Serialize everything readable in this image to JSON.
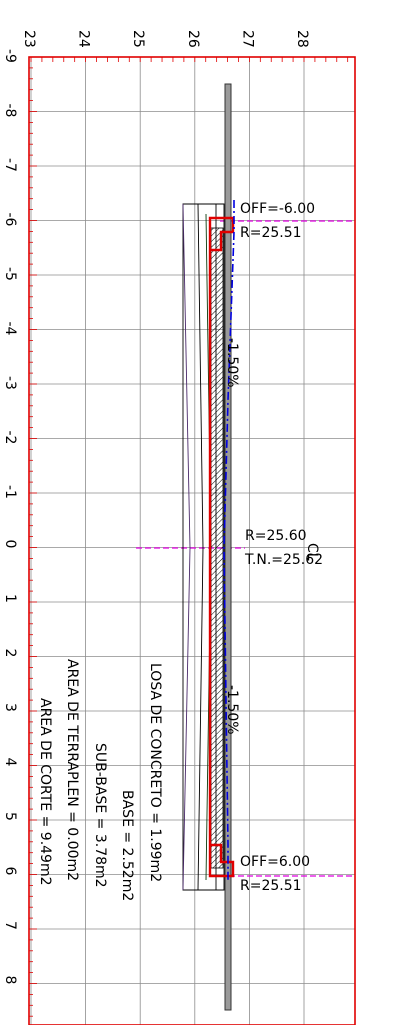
{
  "elevation_axis": {
    "ticks": [
      "23",
      "24",
      "25",
      "26",
      "27",
      "28"
    ]
  },
  "offset_axis": {
    "ticks": [
      "-9",
      "-8",
      "-7",
      "-6",
      "-5",
      "-4",
      "-3",
      "-2",
      "-1",
      "0",
      "1",
      "2",
      "3",
      "4",
      "5",
      "6",
      "7",
      "8"
    ]
  },
  "annotations": {
    "left_offset": "OFF=-6.00",
    "left_rasante": "R=25.51",
    "slope_left": "-1.50%",
    "center_rasante": "R=25.60",
    "centerline_symbol": "CL",
    "ground_level": "T.N.=25.62",
    "slope_right": "-1.50%",
    "right_offset": "OFF=6.00",
    "right_rasante": "R=25.51"
  },
  "areas": {
    "losa": "LOSA DE CONCRETO = 1.99m2",
    "base": "BASE = 2.52m2",
    "subbase": "SUB-BASE = 3.78m2",
    "terraplen": "AREA DE TERRAPLEN = 0.00m2",
    "corte": "AREA DE CORTE = 9.49m2"
  },
  "colors": {
    "frame": "#e00000",
    "grid": "#8c8c8c",
    "offset_line": "#e000e0",
    "ground_line": "#0000e0",
    "section": "#e00000",
    "layers": "#000000"
  }
}
